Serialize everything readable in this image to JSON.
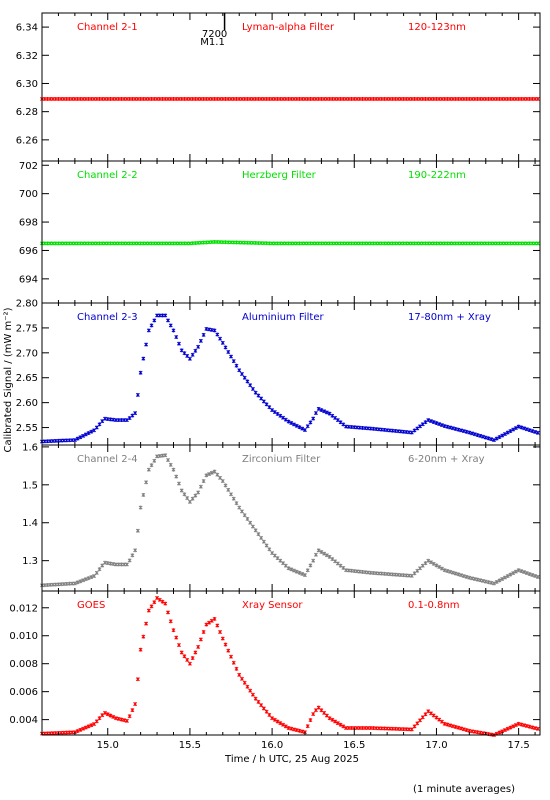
{
  "figure": {
    "ylabel": "Calibrated Signal / (mW m⁻²)",
    "xlabel": "Time / h UTC, 25 Aug 2025",
    "footnote": "(1 minute averages)",
    "marker": {
      "line1": "7200",
      "line2": "M1.1",
      "x": 15.65
    }
  },
  "chart_data": [
    {
      "type": "scatter",
      "channel": "Channel 2-1",
      "filter": "Lyman-alpha Filter",
      "band": "120-123nm",
      "color": "#ff0000",
      "xlim": [
        14.6,
        17.63
      ],
      "ylim": [
        6.245,
        6.35
      ],
      "yticks": [
        "6.26",
        "6.28",
        "6.30",
        "6.32",
        "6.34"
      ],
      "xticks": [],
      "x": [
        14.6,
        15.0,
        15.5,
        16.0,
        16.5,
        17.0,
        17.63
      ],
      "y": [
        6.289,
        6.289,
        6.289,
        6.289,
        6.289,
        6.289,
        6.289
      ]
    },
    {
      "type": "scatter",
      "channel": "Channel 2-2",
      "filter": "Herzberg Filter",
      "band": "190-222nm",
      "color": "#00e000",
      "xlim": [
        14.6,
        17.63
      ],
      "ylim": [
        692.3,
        702.3
      ],
      "yticks": [
        "694",
        "696",
        "698",
        "700",
        "702"
      ],
      "xticks": [],
      "x": [
        14.6,
        15.0,
        15.5,
        15.65,
        16.0,
        16.5,
        17.0,
        17.63
      ],
      "y": [
        696.5,
        696.5,
        696.5,
        696.6,
        696.5,
        696.5,
        696.5,
        696.5
      ]
    },
    {
      "type": "scatter",
      "channel": "Channel 2-3",
      "filter": "Aluminium Filter",
      "band": "17-80nm + Xray",
      "color": "#0000d0",
      "xlim": [
        14.6,
        17.63
      ],
      "ylim": [
        2.515,
        2.8
      ],
      "yticks": [
        "2.55",
        "2.60",
        "2.65",
        "2.70",
        "2.75",
        "2.80"
      ],
      "xticks": [],
      "x": [
        14.6,
        14.8,
        14.92,
        14.98,
        15.05,
        15.12,
        15.17,
        15.2,
        15.25,
        15.3,
        15.35,
        15.4,
        15.45,
        15.5,
        15.55,
        15.6,
        15.65,
        15.7,
        15.8,
        15.9,
        16.0,
        16.1,
        16.2,
        16.25,
        16.28,
        16.35,
        16.45,
        16.6,
        16.85,
        16.95,
        17.05,
        17.2,
        17.35,
        17.5,
        17.63
      ],
      "y": [
        2.522,
        2.525,
        2.545,
        2.568,
        2.565,
        2.565,
        2.58,
        2.66,
        2.745,
        2.775,
        2.775,
        2.745,
        2.705,
        2.688,
        2.712,
        2.748,
        2.745,
        2.72,
        2.665,
        2.62,
        2.585,
        2.562,
        2.545,
        2.568,
        2.588,
        2.578,
        2.552,
        2.548,
        2.54,
        2.565,
        2.553,
        2.54,
        2.525,
        2.552,
        2.538
      ]
    },
    {
      "type": "scatter",
      "channel": "Channel 2-4",
      "filter": "Zirconium Filter",
      "band": "6-20nm + Xray",
      "color": "#808080",
      "xlim": [
        14.6,
        17.63
      ],
      "ylim": [
        1.22,
        1.605
      ],
      "yticks": [
        "1.3",
        "1.4",
        "1.5",
        "1.6"
      ],
      "xticks": [],
      "x": [
        14.6,
        14.8,
        14.92,
        14.98,
        15.05,
        15.12,
        15.17,
        15.2,
        15.25,
        15.3,
        15.35,
        15.4,
        15.45,
        15.5,
        15.55,
        15.6,
        15.65,
        15.7,
        15.8,
        15.9,
        16.0,
        16.1,
        16.2,
        16.25,
        16.28,
        16.35,
        16.45,
        16.6,
        16.85,
        16.95,
        17.05,
        17.2,
        17.35,
        17.5,
        17.63
      ],
      "y": [
        1.235,
        1.24,
        1.26,
        1.295,
        1.29,
        1.29,
        1.33,
        1.44,
        1.54,
        1.575,
        1.578,
        1.54,
        1.485,
        1.455,
        1.48,
        1.525,
        1.535,
        1.51,
        1.44,
        1.38,
        1.32,
        1.28,
        1.262,
        1.3,
        1.328,
        1.31,
        1.275,
        1.268,
        1.26,
        1.3,
        1.275,
        1.255,
        1.24,
        1.275,
        1.255
      ]
    },
    {
      "type": "scatter",
      "channel": "GOES",
      "filter": "Xray Sensor",
      "band": "0.1-0.8nm",
      "color": "#ff0000",
      "xlim": [
        14.6,
        17.63
      ],
      "ylim": [
        0.0029,
        0.0132
      ],
      "yticks": [
        "0.004",
        "0.006",
        "0.008",
        "0.010",
        "0.012"
      ],
      "xticks": [
        "15.0",
        "15.5",
        "16.0",
        "16.5",
        "17.0",
        "17.5"
      ],
      "x": [
        14.6,
        14.8,
        14.92,
        14.98,
        15.05,
        15.12,
        15.17,
        15.2,
        15.25,
        15.3,
        15.35,
        15.4,
        15.45,
        15.5,
        15.55,
        15.6,
        15.65,
        15.7,
        15.8,
        15.9,
        16.0,
        16.1,
        16.2,
        16.25,
        16.28,
        16.35,
        16.45,
        16.6,
        16.85,
        16.95,
        17.05,
        17.2,
        17.35,
        17.5,
        17.63
      ],
      "y": [
        0.003,
        0.0031,
        0.0037,
        0.0045,
        0.0041,
        0.0039,
        0.0052,
        0.009,
        0.0118,
        0.0127,
        0.0123,
        0.0104,
        0.0088,
        0.008,
        0.0092,
        0.0108,
        0.0112,
        0.0098,
        0.0072,
        0.0055,
        0.0041,
        0.0034,
        0.0031,
        0.0044,
        0.0049,
        0.0041,
        0.0034,
        0.0034,
        0.0033,
        0.0046,
        0.0037,
        0.0032,
        0.0029,
        0.0037,
        0.0033
      ]
    }
  ]
}
